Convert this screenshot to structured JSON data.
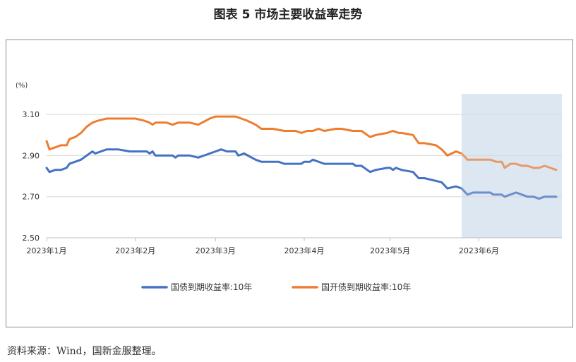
{
  "title": "图表 5  市场主要收益率走势",
  "source": "资料来源：Wind，国新金服整理。",
  "chart_data": {
    "type": "line",
    "unit_label": "(%)",
    "ylim": [
      2.5,
      3.2
    ],
    "yticks": [
      2.5,
      2.7,
      2.9,
      3.1
    ],
    "ytick_labels": [
      "2.50",
      "2.70",
      "2.90",
      "3.10"
    ],
    "xlim": [
      "2023-01-01",
      "2023-06-30"
    ],
    "xticks": [
      "2023-01-01",
      "2023-02-01",
      "2023-03-01",
      "2023-04-01",
      "2023-05-01",
      "2023-06-01"
    ],
    "xtick_labels": [
      "2023年1月",
      "2023年2月",
      "2023年3月",
      "2023年4月",
      "2023年5月",
      "2023年6月"
    ],
    "grid": "horizontal",
    "legend_position": "bottom",
    "highlight_region": {
      "x_start": "2023-05-26",
      "x_end": "2023-06-30",
      "color": "#dce7f1"
    },
    "series": [
      {
        "name": "国债到期收益率:10年",
        "color": "#4472c4",
        "faded_color": "#6c8fcc",
        "points": [
          [
            "2023-01-01",
            2.84
          ],
          [
            "2023-01-02",
            2.82
          ],
          [
            "2023-01-04",
            2.83
          ],
          [
            "2023-01-06",
            2.83
          ],
          [
            "2023-01-08",
            2.84
          ],
          [
            "2023-01-09",
            2.86
          ],
          [
            "2023-01-11",
            2.87
          ],
          [
            "2023-01-13",
            2.88
          ],
          [
            "2023-01-15",
            2.9
          ],
          [
            "2023-01-17",
            2.92
          ],
          [
            "2023-01-18",
            2.91
          ],
          [
            "2023-01-20",
            2.92
          ],
          [
            "2023-01-22",
            2.93
          ],
          [
            "2023-01-26",
            2.93
          ],
          [
            "2023-01-30",
            2.92
          ],
          [
            "2023-02-05",
            2.92
          ],
          [
            "2023-02-06",
            2.91
          ],
          [
            "2023-02-07",
            2.92
          ],
          [
            "2023-02-08",
            2.9
          ],
          [
            "2023-02-14",
            2.9
          ],
          [
            "2023-02-15",
            2.89
          ],
          [
            "2023-02-16",
            2.9
          ],
          [
            "2023-02-20",
            2.9
          ],
          [
            "2023-02-23",
            2.89
          ],
          [
            "2023-02-27",
            2.91
          ],
          [
            "2023-03-01",
            2.92
          ],
          [
            "2023-03-03",
            2.93
          ],
          [
            "2023-03-05",
            2.92
          ],
          [
            "2023-03-08",
            2.92
          ],
          [
            "2023-03-09",
            2.9
          ],
          [
            "2023-03-11",
            2.91
          ],
          [
            "2023-03-15",
            2.88
          ],
          [
            "2023-03-17",
            2.87
          ],
          [
            "2023-03-23",
            2.87
          ],
          [
            "2023-03-25",
            2.86
          ],
          [
            "2023-03-31",
            2.86
          ],
          [
            "2023-04-01",
            2.87
          ],
          [
            "2023-04-03",
            2.87
          ],
          [
            "2023-04-04",
            2.88
          ],
          [
            "2023-04-08",
            2.86
          ],
          [
            "2023-04-12",
            2.86
          ],
          [
            "2023-04-14",
            2.86
          ],
          [
            "2023-04-18",
            2.86
          ],
          [
            "2023-04-19",
            2.85
          ],
          [
            "2023-04-21",
            2.85
          ],
          [
            "2023-04-24",
            2.82
          ],
          [
            "2023-04-26",
            2.83
          ],
          [
            "2023-04-30",
            2.84
          ],
          [
            "2023-05-01",
            2.84
          ],
          [
            "2023-05-02",
            2.83
          ],
          [
            "2023-05-03",
            2.84
          ],
          [
            "2023-05-05",
            2.83
          ],
          [
            "2023-05-09",
            2.82
          ],
          [
            "2023-05-11",
            2.79
          ],
          [
            "2023-05-13",
            2.79
          ],
          [
            "2023-05-19",
            2.77
          ],
          [
            "2023-05-21",
            2.74
          ],
          [
            "2023-05-24",
            2.75
          ],
          [
            "2023-05-26",
            2.74
          ],
          [
            "2023-05-28",
            2.71
          ],
          [
            "2023-05-30",
            2.72
          ],
          [
            "2023-06-01",
            2.72
          ],
          [
            "2023-06-05",
            2.72
          ],
          [
            "2023-06-06",
            2.71
          ],
          [
            "2023-06-09",
            2.71
          ],
          [
            "2023-06-10",
            2.7
          ],
          [
            "2023-06-12",
            2.71
          ],
          [
            "2023-06-14",
            2.72
          ],
          [
            "2023-06-16",
            2.71
          ],
          [
            "2023-06-18",
            2.7
          ],
          [
            "2023-06-20",
            2.7
          ],
          [
            "2023-06-22",
            2.69
          ],
          [
            "2023-06-24",
            2.7
          ],
          [
            "2023-06-26",
            2.7
          ],
          [
            "2023-06-28",
            2.7
          ]
        ]
      },
      {
        "name": "国开债到期收益率:10年",
        "color": "#ed7d31",
        "faded_color": "#e8996a",
        "points": [
          [
            "2023-01-01",
            2.97
          ],
          [
            "2023-01-02",
            2.93
          ],
          [
            "2023-01-04",
            2.94
          ],
          [
            "2023-01-06",
            2.95
          ],
          [
            "2023-01-08",
            2.95
          ],
          [
            "2023-01-09",
            2.98
          ],
          [
            "2023-01-11",
            2.99
          ],
          [
            "2023-01-13",
            3.01
          ],
          [
            "2023-01-15",
            3.04
          ],
          [
            "2023-01-17",
            3.06
          ],
          [
            "2023-01-19",
            3.07
          ],
          [
            "2023-01-22",
            3.08
          ],
          [
            "2023-01-26",
            3.08
          ],
          [
            "2023-02-01",
            3.08
          ],
          [
            "2023-02-04",
            3.07
          ],
          [
            "2023-02-06",
            3.06
          ],
          [
            "2023-02-07",
            3.05
          ],
          [
            "2023-02-08",
            3.06
          ],
          [
            "2023-02-12",
            3.06
          ],
          [
            "2023-02-14",
            3.05
          ],
          [
            "2023-02-16",
            3.06
          ],
          [
            "2023-02-20",
            3.06
          ],
          [
            "2023-02-23",
            3.05
          ],
          [
            "2023-02-27",
            3.08
          ],
          [
            "2023-03-01",
            3.09
          ],
          [
            "2023-03-03",
            3.09
          ],
          [
            "2023-03-05",
            3.09
          ],
          [
            "2023-03-08",
            3.09
          ],
          [
            "2023-03-10",
            3.08
          ],
          [
            "2023-03-12",
            3.07
          ],
          [
            "2023-03-15",
            3.05
          ],
          [
            "2023-03-17",
            3.03
          ],
          [
            "2023-03-21",
            3.03
          ],
          [
            "2023-03-25",
            3.02
          ],
          [
            "2023-03-29",
            3.02
          ],
          [
            "2023-03-31",
            3.01
          ],
          [
            "2023-04-02",
            3.02
          ],
          [
            "2023-04-04",
            3.02
          ],
          [
            "2023-04-06",
            3.03
          ],
          [
            "2023-04-08",
            3.02
          ],
          [
            "2023-04-12",
            3.03
          ],
          [
            "2023-04-14",
            3.03
          ],
          [
            "2023-04-18",
            3.02
          ],
          [
            "2023-04-21",
            3.02
          ],
          [
            "2023-04-24",
            2.99
          ],
          [
            "2023-04-26",
            3.0
          ],
          [
            "2023-04-30",
            3.01
          ],
          [
            "2023-05-02",
            3.02
          ],
          [
            "2023-05-04",
            3.01
          ],
          [
            "2023-05-05",
            3.01
          ],
          [
            "2023-05-09",
            3.0
          ],
          [
            "2023-05-11",
            2.96
          ],
          [
            "2023-05-13",
            2.96
          ],
          [
            "2023-05-17",
            2.95
          ],
          [
            "2023-05-19",
            2.93
          ],
          [
            "2023-05-21",
            2.9
          ],
          [
            "2023-05-24",
            2.92
          ],
          [
            "2023-05-26",
            2.91
          ],
          [
            "2023-05-28",
            2.88
          ],
          [
            "2023-05-30",
            2.88
          ],
          [
            "2023-06-01",
            2.88
          ],
          [
            "2023-06-03",
            2.88
          ],
          [
            "2023-06-05",
            2.88
          ],
          [
            "2023-06-07",
            2.87
          ],
          [
            "2023-06-09",
            2.87
          ],
          [
            "2023-06-10",
            2.84
          ],
          [
            "2023-06-12",
            2.86
          ],
          [
            "2023-06-14",
            2.86
          ],
          [
            "2023-06-16",
            2.85
          ],
          [
            "2023-06-18",
            2.85
          ],
          [
            "2023-06-20",
            2.84
          ],
          [
            "2023-06-22",
            2.84
          ],
          [
            "2023-06-24",
            2.85
          ],
          [
            "2023-06-26",
            2.84
          ],
          [
            "2023-06-28",
            2.83
          ]
        ]
      }
    ]
  }
}
